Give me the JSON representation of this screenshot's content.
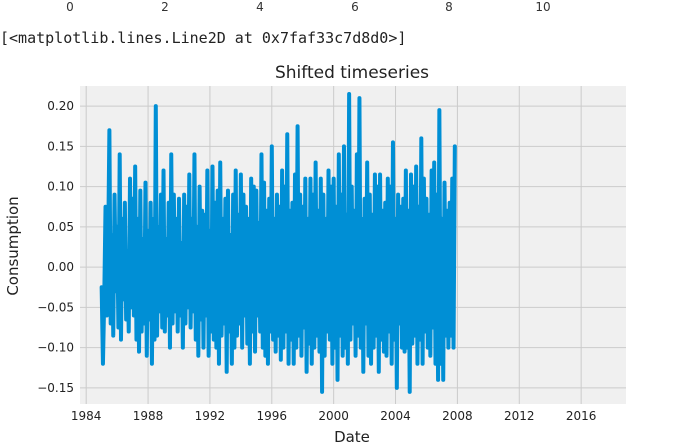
{
  "notebook": {
    "previous_axis_ticks": [
      "0",
      "2",
      "4",
      "6",
      "8",
      "10"
    ],
    "output_repr": "[<matplotlib.lines.Line2D at 0x7faf33c7d8d0>]"
  },
  "chart_data": {
    "type": "line",
    "title": "Shifted timeseries",
    "xlabel": "Date",
    "ylabel": "Consumption",
    "xlim": [
      1983.6,
      2018.9
    ],
    "ylim": [
      -0.17,
      0.225
    ],
    "x_ticks": [
      "1984",
      "1988",
      "1992",
      "1996",
      "2000",
      "2004",
      "2008",
      "2012",
      "2016"
    ],
    "y_ticks": [
      "0.20",
      "0.15",
      "0.10",
      "0.05",
      "0.00",
      "−0.05",
      "−0.10",
      "−0.15"
    ],
    "y_tick_values": [
      0.2,
      0.15,
      0.1,
      0.05,
      0.0,
      -0.05,
      -0.1,
      -0.15
    ],
    "grid": true,
    "style": "fivethirtyeight",
    "line_color": "#008fd5",
    "plot_background": "#f0f0f0",
    "series": [
      {
        "x_start": 1985.0,
        "x_step_months": 1,
        "values": [
          -0.025,
          -0.12,
          -0.04,
          0.075,
          -0.06,
          0.02,
          0.17,
          -0.07,
          0.04,
          -0.085,
          0.09,
          -0.03,
          0.05,
          -0.075,
          0.14,
          -0.09,
          0.06,
          -0.04,
          0.08,
          -0.065,
          0.02,
          -0.08,
          0.11,
          -0.05,
          0.085,
          -0.06,
          0.125,
          -0.09,
          0.06,
          -0.105,
          0.095,
          -0.08,
          0.035,
          -0.07,
          0.105,
          -0.11,
          0.045,
          -0.065,
          0.08,
          -0.12,
          0.06,
          -0.09,
          0.2,
          -0.085,
          0.05,
          -0.055,
          0.09,
          -0.075,
          0.12,
          -0.08,
          0.035,
          -0.06,
          0.08,
          -0.1,
          0.14,
          -0.07,
          0.09,
          -0.055,
          0.06,
          -0.08,
          0.085,
          -0.06,
          0.03,
          -0.1,
          0.09,
          -0.07,
          0.075,
          -0.05,
          0.115,
          -0.075,
          0.06,
          -0.055,
          0.14,
          -0.09,
          0.05,
          -0.11,
          0.1,
          -0.065,
          0.07,
          -0.1,
          0.065,
          -0.06,
          0.12,
          -0.11,
          0.045,
          -0.08,
          0.125,
          -0.09,
          0.08,
          -0.1,
          0.095,
          -0.12,
          0.13,
          -0.085,
          0.06,
          -0.07,
          0.085,
          -0.13,
          0.095,
          -0.08,
          0.04,
          -0.12,
          0.09,
          -0.1,
          0.12,
          -0.085,
          0.065,
          -0.07,
          0.115,
          -0.1,
          0.09,
          -0.06,
          0.075,
          -0.095,
          0.06,
          -0.12,
          0.11,
          -0.08,
          0.1,
          -0.105,
          0.095,
          -0.06,
          0.055,
          -0.08,
          0.14,
          -0.1,
          0.105,
          -0.11,
          0.07,
          -0.12,
          0.085,
          -0.08,
          0.15,
          -0.09,
          0.06,
          -0.105,
          0.09,
          -0.085,
          0.075,
          -0.115,
          0.12,
          -0.1,
          0.1,
          -0.08,
          0.165,
          -0.12,
          0.07,
          -0.09,
          0.08,
          -0.12,
          0.115,
          -0.1,
          0.175,
          -0.085,
          0.09,
          -0.11,
          0.075,
          -0.075,
          0.11,
          -0.13,
          0.06,
          -0.095,
          0.11,
          -0.12,
          0.09,
          -0.1,
          0.13,
          -0.085,
          0.07,
          -0.105,
          0.11,
          -0.155,
          0.09,
          -0.11,
          0.06,
          -0.08,
          0.12,
          -0.09,
          0.1,
          -0.12,
          0.11,
          -0.1,
          0.075,
          -0.14,
          0.14,
          -0.085,
          0.09,
          -0.11,
          0.15,
          -0.1,
          0.065,
          -0.12,
          0.215,
          -0.09,
          0.1,
          -0.07,
          0.07,
          -0.11,
          0.14,
          -0.085,
          0.21,
          -0.1,
          0.06,
          -0.13,
          0.085,
          -0.07,
          0.13,
          -0.11,
          0.09,
          -0.12,
          0.065,
          -0.1,
          0.115,
          -0.085,
          0.1,
          -0.13,
          0.115,
          -0.09,
          0.07,
          -0.105,
          0.08,
          -0.11,
          0.11,
          -0.08,
          0.1,
          -0.12,
          0.155,
          -0.09,
          0.06,
          -0.15,
          0.09,
          -0.07,
          0.075,
          -0.1,
          0.085,
          -0.105,
          0.12,
          -0.1,
          0.07,
          -0.155,
          0.115,
          -0.095,
          0.1,
          -0.085,
          0.125,
          -0.12,
          0.075,
          -0.09,
          0.16,
          -0.12,
          0.11,
          -0.08,
          0.085,
          -0.1,
          0.065,
          -0.11,
          0.12,
          -0.075,
          0.13,
          -0.12,
          0.09,
          -0.14,
          0.195,
          -0.12,
          0.06,
          -0.14,
          0.105,
          -0.085,
          0.07,
          -0.1,
          0.08,
          -0.085,
          0.11,
          -0.1,
          0.15
        ]
      }
    ]
  }
}
